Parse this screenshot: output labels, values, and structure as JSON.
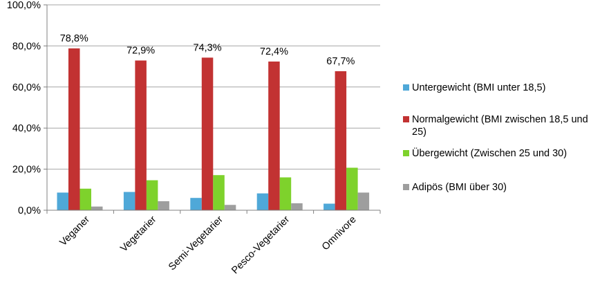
{
  "chart_data": {
    "type": "bar",
    "categories": [
      "Veganer",
      "Vegetarier",
      "Semi-Vegetarier",
      "Pesco-Vegetarier",
      "Omnivore"
    ],
    "series": [
      {
        "name": "Untergewicht (BMI unter 18,5)",
        "color": "#4fa8d8",
        "values": [
          8.6,
          8.9,
          6.0,
          8.2,
          3.2
        ]
      },
      {
        "name": "Normalgewicht (BMI zwischen 18,5 und 25)",
        "color": "#c23232",
        "values": [
          78.8,
          72.9,
          74.3,
          72.4,
          67.7
        ]
      },
      {
        "name": "Übergewicht (Zwischen 25 und 30)",
        "color": "#7ed22c",
        "values": [
          10.5,
          14.6,
          17.1,
          16.0,
          20.7
        ]
      },
      {
        "name": "Adipös (BMI über 30)",
        "color": "#9e9e9e",
        "values": [
          1.8,
          4.4,
          2.6,
          3.4,
          8.6
        ]
      }
    ],
    "data_labels": [
      "78,8%",
      "72,9%",
      "74,3%",
      "72,4%",
      "67,7%"
    ],
    "y_ticks": [
      "0,0%",
      "20,0%",
      "40,0%",
      "60,0%",
      "80,0%",
      "100,0%"
    ],
    "ylim": [
      0,
      100
    ],
    "grid": true,
    "legend_position": "right"
  }
}
